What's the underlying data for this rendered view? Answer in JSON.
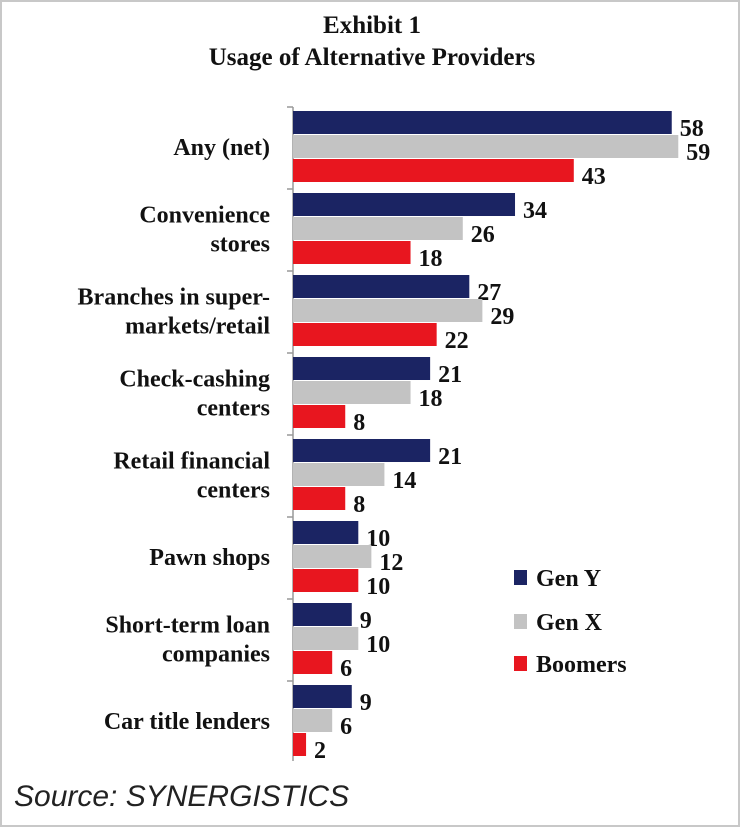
{
  "chart_data": {
    "type": "bar",
    "orientation": "horizontal",
    "title": "Exhibit 1",
    "subtitle": "Usage of Alternative Providers",
    "categories": [
      [
        "Any (net)"
      ],
      [
        "Convenience",
        "stores"
      ],
      [
        "Branches in super-",
        "markets/retail"
      ],
      [
        "Check-cashing",
        "centers"
      ],
      [
        "Retail financial",
        "centers"
      ],
      [
        "Pawn shops"
      ],
      [
        "Short-term loan",
        "companies"
      ],
      [
        "Car title lenders"
      ]
    ],
    "series": [
      {
        "name": "Gen Y",
        "color": "#1b2463",
        "values": [
          58,
          34,
          27,
          21,
          21,
          10,
          9,
          9
        ]
      },
      {
        "name": "Gen X",
        "color": "#c3c3c3",
        "values": [
          59,
          26,
          29,
          18,
          14,
          12,
          10,
          6
        ]
      },
      {
        "name": "Boomers",
        "color": "#e8161f",
        "values": [
          43,
          18,
          22,
          8,
          8,
          10,
          6,
          2
        ]
      }
    ],
    "xlim": [
      0,
      60
    ],
    "data_labels": true,
    "grid": false,
    "legend_position": "bottom-right"
  },
  "source": "Source: SYNERGISTICS"
}
